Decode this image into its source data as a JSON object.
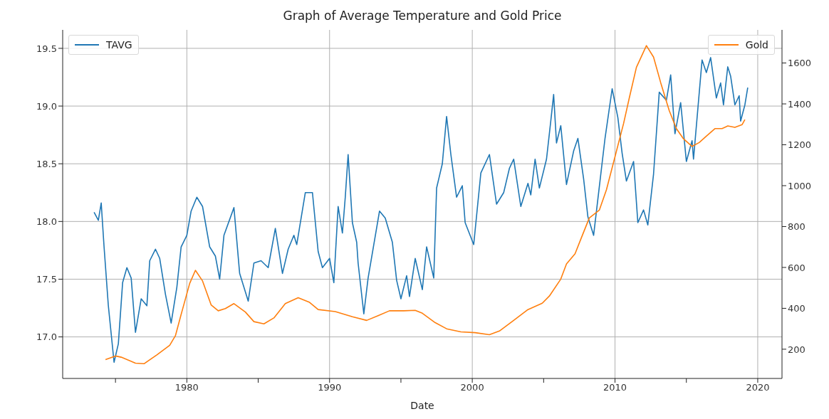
{
  "chart_data": {
    "type": "line",
    "title": "Graph of Average Temperature and Gold Price",
    "xlabel": "Date",
    "xlim": [
      1971.3,
      2021.7
    ],
    "xticks": [
      {
        "value": 1975,
        "label": null
      },
      1980,
      {
        "value": 1985,
        "label": null
      },
      1990,
      {
        "value": 1995,
        "label": null
      },
      2000,
      {
        "value": 2005,
        "label": null
      },
      2010,
      {
        "value": 2015,
        "label": null
      },
      2020
    ],
    "ylim": [
      16.64,
      19.66
    ],
    "yticks": [
      {
        "value": 17,
        "label": "17.0"
      },
      17.5,
      {
        "value": 18,
        "label": "18.0"
      },
      18.5,
      {
        "value": 19,
        "label": "19.0"
      },
      19.5
    ],
    "y2lim": [
      57,
      1762
    ],
    "y2ticks": [
      200,
      400,
      600,
      800,
      1000,
      1200,
      1400,
      1600
    ],
    "grid": true,
    "legend": "top",
    "series": [
      {
        "name": "TAVG",
        "color": "#1f77b4",
        "axis": "y",
        "x": [
          1973.5,
          1973.8,
          1974.0,
          1974.2,
          1974.5,
          1974.9,
          1975.2,
          1975.5,
          1975.8,
          1976.1,
          1976.4,
          1976.8,
          1977.2,
          1977.4,
          1977.8,
          1978.1,
          1978.5,
          1978.9,
          1979.3,
          1979.6,
          1980.0,
          1980.3,
          1980.7,
          1981.1,
          1981.6,
          1982.0,
          1982.3,
          1982.6,
          1983.3,
          1983.7,
          1984.3,
          1984.7,
          1985.2,
          1985.7,
          1986.2,
          1986.7,
          1987.1,
          1987.5,
          1987.7,
          1988.3,
          1988.8,
          1989.2,
          1989.5,
          1990.0,
          1990.3,
          1990.6,
          1990.9,
          1991.1,
          1991.3,
          1991.6,
          1991.9,
          1992.0,
          1992.4,
          1992.7,
          1993.5,
          1993.9,
          1994.4,
          1994.7,
          1995.0,
          1995.4,
          1995.6,
          1996.0,
          1996.5,
          1996.8,
          1997.3,
          1997.5,
          1997.9,
          1998.2,
          1998.5,
          1998.9,
          1999.3,
          1999.5,
          2000.1,
          2000.6,
          2001.2,
          2001.7,
          2002.2,
          2002.6,
          2002.9,
          2003.4,
          2003.9,
          2004.1,
          2004.4,
          2004.7,
          2005.2,
          2005.5,
          2005.7,
          2005.9,
          2006.2,
          2006.6,
          2007.1,
          2007.4,
          2007.8,
          2008.1,
          2008.5,
          2008.9,
          2009.3,
          2009.8,
          2010.2,
          2010.5,
          2010.8,
          2011.3,
          2011.6,
          2012.0,
          2012.3,
          2012.7,
          2013.1,
          2013.6,
          2013.9,
          2014.2,
          2014.6,
          2015.0,
          2015.4,
          2015.5,
          2016.1,
          2016.4,
          2016.7,
          2017.1,
          2017.4,
          2017.6,
          2017.9,
          2018.1,
          2018.4,
          2018.7,
          2018.8,
          2019.1,
          2019.3
        ],
        "values": [
          18.08,
          18.01,
          18.16,
          17.78,
          17.27,
          16.78,
          16.94,
          17.47,
          17.6,
          17.51,
          17.04,
          17.33,
          17.27,
          17.66,
          17.76,
          17.68,
          17.37,
          17.12,
          17.43,
          17.78,
          17.88,
          18.09,
          18.21,
          18.13,
          17.78,
          17.7,
          17.5,
          17.88,
          18.12,
          17.55,
          17.31,
          17.64,
          17.66,
          17.6,
          17.94,
          17.55,
          17.76,
          17.88,
          17.8,
          18.25,
          18.25,
          17.74,
          17.6,
          17.68,
          17.47,
          18.13,
          17.9,
          18.21,
          18.58,
          17.99,
          17.82,
          17.64,
          17.2,
          17.51,
          18.09,
          18.03,
          17.82,
          17.49,
          17.33,
          17.53,
          17.35,
          17.68,
          17.41,
          17.78,
          17.51,
          18.29,
          18.5,
          18.91,
          18.58,
          18.21,
          18.31,
          17.99,
          17.8,
          18.42,
          18.58,
          18.15,
          18.25,
          18.46,
          18.54,
          18.13,
          18.33,
          18.23,
          18.54,
          18.29,
          18.54,
          18.87,
          19.1,
          18.68,
          18.83,
          18.32,
          18.61,
          18.72,
          18.37,
          18.04,
          17.88,
          18.3,
          18.72,
          19.15,
          18.9,
          18.59,
          18.35,
          18.52,
          17.99,
          18.1,
          17.97,
          18.41,
          19.12,
          19.05,
          19.27,
          18.76,
          19.03,
          18.52,
          18.7,
          18.54,
          19.4,
          19.29,
          19.42,
          19.07,
          19.2,
          19.01,
          19.34,
          19.26,
          19.01,
          19.09,
          18.87,
          19.01,
          19.16
        ]
      },
      {
        "name": "Gold",
        "color": "#ff7f0e",
        "axis": "y2",
        "x": [
          1974.3,
          1975.0,
          1975.4,
          1976.4,
          1977.0,
          1977.9,
          1978.8,
          1979.2,
          1979.6,
          1980.2,
          1980.6,
          1981.1,
          1981.7,
          1982.2,
          1982.7,
          1983.3,
          1984.1,
          1984.7,
          1985.4,
          1986.1,
          1986.9,
          1987.8,
          1988.6,
          1989.2,
          1990.4,
          1991.6,
          1992.6,
          1993.4,
          1994.2,
          1995.2,
          1996.0,
          1996.5,
          1997.4,
          1998.2,
          1999.2,
          2000.2,
          2001.2,
          2001.9,
          2002.9,
          2003.9,
          2004.9,
          2005.4,
          2006.2,
          2006.6,
          2007.2,
          2007.7,
          2008.2,
          2008.9,
          2009.4,
          2010.0,
          2010.6,
          2011.0,
          2011.5,
          2012.2,
          2012.7,
          2013.2,
          2013.8,
          2014.3,
          2014.8,
          2015.4,
          2015.9,
          2016.4,
          2017.0,
          2017.5,
          2017.9,
          2018.4,
          2018.9,
          2019.1
        ],
        "values": [
          149,
          167,
          161,
          132,
          129,
          172,
          219,
          266,
          370,
          522,
          586,
          534,
          417,
          388,
          399,
          423,
          382,
          335,
          324,
          353,
          423,
          452,
          429,
          394,
          384,
          359,
          341,
          364,
          388,
          388,
          390,
          376,
          330,
          300,
          285,
          281,
          271,
          289,
          341,
          394,
          425,
          460,
          543,
          617,
          667,
          755,
          842,
          880,
          980,
          1142,
          1304,
          1429,
          1579,
          1685,
          1629,
          1504,
          1367,
          1279,
          1229,
          1192,
          1211,
          1242,
          1279,
          1279,
          1292,
          1285,
          1298,
          1323
        ]
      }
    ]
  }
}
